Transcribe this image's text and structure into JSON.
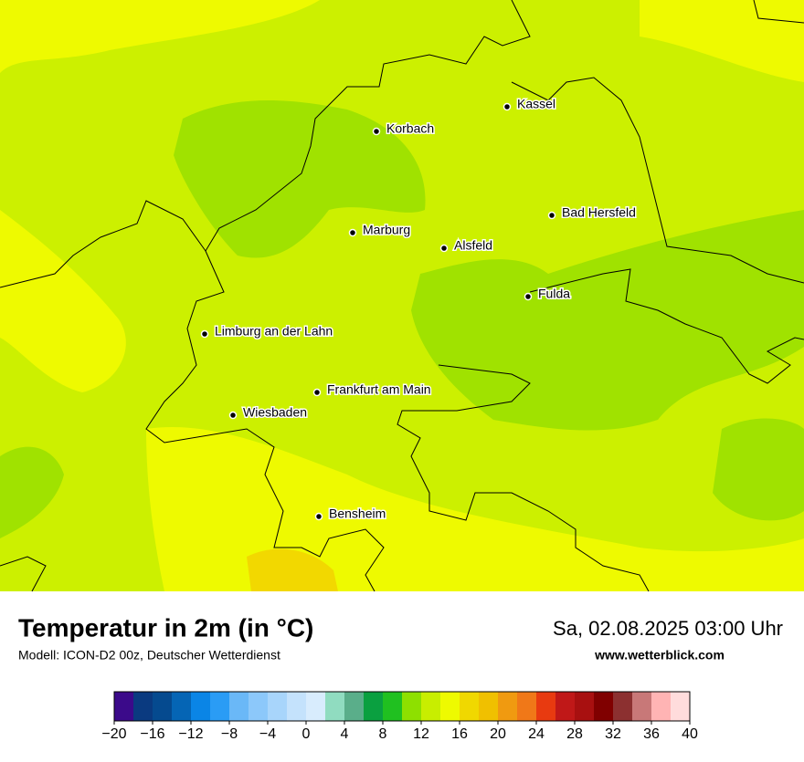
{
  "map": {
    "cities": [
      "Kassel",
      "Korbach",
      "Bad Hersfeld",
      "Marburg",
      "Alsfeld",
      "Fulda",
      "Limburg an der Lahn",
      "Frankfurt am Main",
      "Wiesbaden",
      "Bensheim"
    ]
  },
  "footer": {
    "title": "Temperatur in 2m (in °C)",
    "subtitle": "Modell: ICON-D2 00z, Deutscher Wetterdienst",
    "date": "Sa, 02.08.2025 03:00 Uhr",
    "website": "www.wetterblick.com"
  },
  "colorbar": {
    "lim": [
      -20,
      40
    ],
    "ticks": [
      {
        "value": -20,
        "label": "−20"
      },
      {
        "value": -16,
        "label": "−16"
      },
      {
        "value": -12,
        "label": "−12"
      },
      {
        "value": -8,
        "label": "−8"
      },
      {
        "value": -4,
        "label": "−4"
      },
      0,
      4,
      8,
      12,
      16,
      20,
      24,
      28,
      32,
      36,
      40
    ],
    "colors": [
      "#3b0a8a",
      "#0a3a80",
      "#054a8f",
      "#0565b5",
      "#0a85e6",
      "#2a9cf5",
      "#6ab8f7",
      "#8cc8fa",
      "#a8d5fb",
      "#c4e2fc",
      "#d8ecfd",
      "#90dcc0",
      "#5aae8a",
      "#0aa040",
      "#20c020",
      "#8ee000",
      "#c8ee00",
      "#eefa00",
      "#f0d800",
      "#f0c000",
      "#f09a10",
      "#f07818",
      "#e83a10",
      "#c01818",
      "#a81010",
      "#800000",
      "#8c3030",
      "#c87878",
      "#ffb4b4",
      "#ffdcdc"
    ]
  }
}
